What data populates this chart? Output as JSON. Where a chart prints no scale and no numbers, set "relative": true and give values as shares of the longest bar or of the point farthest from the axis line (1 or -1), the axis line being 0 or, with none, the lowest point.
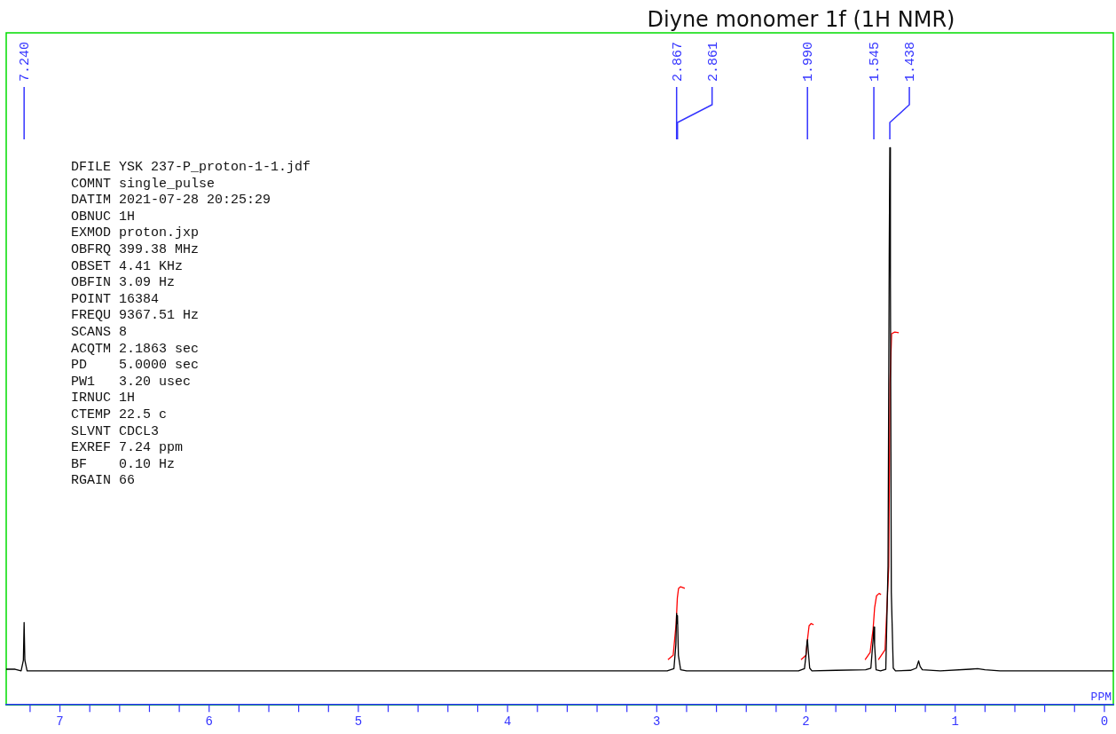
{
  "chart_data": {
    "type": "line",
    "title": "Diyne monomer 1f (1H NMR)",
    "xlabel": "PPM",
    "relative": true,
    "marker": "none",
    "xlim": [
      7.36,
      -0.06
    ],
    "xticks": [
      {
        "value": 7.2,
        "label": null
      },
      7,
      {
        "value": 6.8,
        "label": null
      },
      {
        "value": 6.6,
        "label": null
      },
      {
        "value": 6.4,
        "label": null
      },
      {
        "value": 6.2,
        "label": null
      },
      6,
      {
        "value": 5.8,
        "label": null
      },
      {
        "value": 5.6,
        "label": null
      },
      {
        "value": 5.4,
        "label": null
      },
      {
        "value": 5.2,
        "label": null
      },
      5,
      {
        "value": 4.8,
        "label": null
      },
      {
        "value": 4.6,
        "label": null
      },
      {
        "value": 4.4,
        "label": null
      },
      {
        "value": 4.2,
        "label": null
      },
      4,
      {
        "value": 3.8,
        "label": null
      },
      {
        "value": 3.6,
        "label": null
      },
      {
        "value": 3.4,
        "label": null
      },
      {
        "value": 3.2,
        "label": null
      },
      3,
      {
        "value": 2.8,
        "label": null
      },
      {
        "value": 2.6,
        "label": null
      },
      {
        "value": 2.4,
        "label": null
      },
      {
        "value": 2.2,
        "label": null
      },
      2,
      {
        "value": 1.8,
        "label": null
      },
      {
        "value": 1.6,
        "label": null
      },
      {
        "value": 1.4,
        "label": null
      },
      {
        "value": 1.2,
        "label": null
      },
      1,
      {
        "value": 0.8,
        "label": null
      },
      {
        "value": 0.6,
        "label": null
      },
      {
        "value": 0.4,
        "label": null
      },
      {
        "value": 0.2,
        "label": null
      },
      0
    ],
    "series": [
      {
        "color": "#000000",
        "x": [
          7.36,
          7.3,
          7.26,
          7.245,
          7.24,
          7.235,
          7.22,
          7.0,
          6.2,
          5.0,
          4.0,
          3.2,
          2.93,
          2.885,
          2.872,
          2.867,
          2.864,
          2.861,
          2.855,
          2.84,
          2.8,
          2.5,
          2.05,
          2.01,
          2.0,
          1.993,
          1.99,
          1.985,
          1.975,
          1.96,
          1.8,
          1.6,
          1.565,
          1.55,
          1.545,
          1.54,
          1.53,
          1.5,
          1.465,
          1.45,
          1.442,
          1.438,
          1.434,
          1.428,
          1.415,
          1.4,
          1.3,
          1.26,
          1.245,
          1.235,
          1.22,
          1.1,
          0.9,
          0.85,
          0.8,
          0.7,
          0.3,
          -0.06
        ],
        "values": [
          0.064,
          0.064,
          0.061,
          0.08,
          0.148,
          0.08,
          0.061,
          0.061,
          0.061,
          0.061,
          0.061,
          0.061,
          0.061,
          0.065,
          0.108,
          0.164,
          0.146,
          0.16,
          0.089,
          0.063,
          0.061,
          0.061,
          0.061,
          0.065,
          0.089,
          0.113,
          0.117,
          0.099,
          0.066,
          0.061,
          0.062,
          0.063,
          0.066,
          0.117,
          0.14,
          0.108,
          0.063,
          0.061,
          0.064,
          0.249,
          0.812,
          1.0,
          0.765,
          0.202,
          0.066,
          0.061,
          0.062,
          0.066,
          0.079,
          0.069,
          0.063,
          0.061,
          0.064,
          0.065,
          0.063,
          0.061,
          0.061,
          0.061
        ]
      },
      {
        "color": "#ff0000",
        "x": [
          2.925,
          2.89,
          2.87,
          2.862,
          2.854,
          2.84,
          2.812
        ],
        "values": [
          0.081,
          0.089,
          0.146,
          0.192,
          0.209,
          0.212,
          0.209
        ]
      },
      {
        "color": "#ff0000",
        "x": [
          2.033,
          2.0,
          1.99,
          1.979,
          1.965,
          1.949
        ],
        "values": [
          0.081,
          0.089,
          0.117,
          0.142,
          0.146,
          0.144
        ]
      },
      {
        "color": "#ff0000",
        "x": [
          1.604,
          1.57,
          1.55,
          1.54,
          1.527,
          1.51,
          1.497
        ],
        "values": [
          0.081,
          0.094,
          0.136,
          0.174,
          0.196,
          0.2,
          0.198
        ]
      },
      {
        "color": "#ff0000",
        "x": [
          1.515,
          1.47,
          1.445,
          1.437,
          1.426,
          1.405,
          1.378
        ],
        "values": [
          0.081,
          0.099,
          0.249,
          0.577,
          0.666,
          0.669,
          0.668
        ]
      }
    ],
    "annotations": [
      {
        "text": "7.240",
        "x": 7.24
      },
      {
        "text": "2.867",
        "x": 2.867
      },
      {
        "text": "2.861",
        "x": 2.861
      },
      {
        "text": "1.990",
        "x": 1.99
      },
      {
        "text": "1.545",
        "x": 1.545
      },
      {
        "text": "1.438",
        "x": 1.438
      },
      "DFILE YSK 237-P_proton-1-1.jdf",
      "COMNT single_pulse",
      "DATIM 2021-07-28 20:25:29",
      "OBNUC 1H",
      "EXMOD proton.jxp",
      "OBFRQ 399.38 MHz",
      "OBSET 4.41 KHz",
      "OBFIN 3.09 Hz",
      "POINT 16384",
      "FREQU 9367.51 Hz",
      "SCANS 8",
      "ACQTM 2.1863 sec",
      "PD    5.0000 sec",
      "PW1   3.20 usec",
      "IRNUC 1H",
      "CTEMP 22.5 c",
      "SLVNT CDCL3",
      "EXREF 7.24 ppm",
      "BF    0.10 Hz",
      "RGAIN 66"
    ]
  }
}
